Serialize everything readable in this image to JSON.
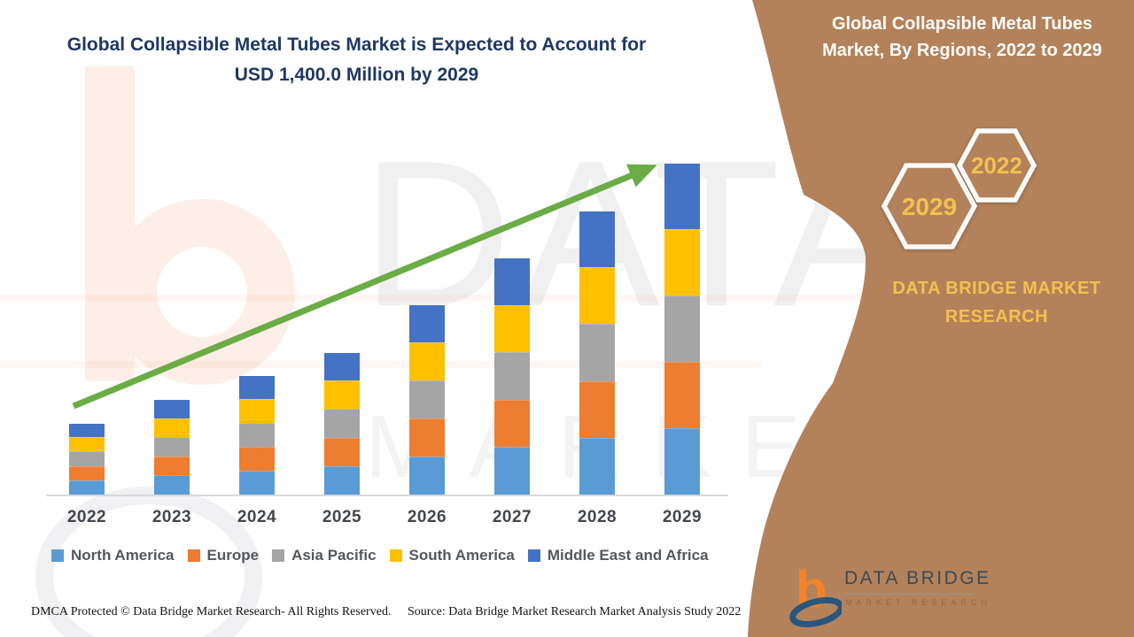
{
  "page": {
    "title_line1": "Global Collapsible Metal Tubes Market is Expected to Account for",
    "title_line2": "USD 1,400.0 Million by 2029",
    "title_color": "#1f3864"
  },
  "sidebar": {
    "heading_line1": "Global Collapsible Metal Tubes",
    "heading_line2": "Market, By Regions, 2022 to 2029",
    "hexagons": [
      {
        "label": "2029"
      },
      {
        "label": "2022"
      }
    ],
    "brand_line1": "DATA BRIDGE MARKET",
    "brand_line2": "RESEARCH",
    "background_color": "#b3825a",
    "gold_color": "#f2c24e"
  },
  "watermark": {
    "big_text": "DATA BRI",
    "sub_text": "MARKET RESEARCH"
  },
  "logo": {
    "name_text": "DATA BRIDGE",
    "sub_text": "MARKET RESEARCH"
  },
  "footer": {
    "left": "DMCA Protected © Data Bridge Market Research- All Rights Reserved.",
    "right": "Source: Data Bridge Market Research Market Analysis Study 2022"
  },
  "chart_data": {
    "type": "bar",
    "stacked": true,
    "unit": "USD Million",
    "categories": [
      "2022",
      "2023",
      "2024",
      "2025",
      "2026",
      "2027",
      "2028",
      "2029"
    ],
    "series": [
      {
        "name": "North America",
        "color": "#5b9bd5",
        "values": [
          60,
          80,
          100,
          120,
          160,
          200,
          240,
          280
        ]
      },
      {
        "name": "Europe",
        "color": "#ed7d31",
        "values": [
          60,
          80,
          100,
          120,
          160,
          200,
          240,
          280
        ]
      },
      {
        "name": "Asia Pacific",
        "color": "#a5a5a5",
        "values": [
          60,
          80,
          100,
          120,
          160,
          200,
          240,
          280
        ]
      },
      {
        "name": "South America",
        "color": "#ffc000",
        "values": [
          60,
          80,
          100,
          120,
          160,
          200,
          240,
          280
        ]
      },
      {
        "name": "Middle East and Africa",
        "color": "#4472c4",
        "values": [
          60,
          80,
          100,
          120,
          160,
          200,
          240,
          280
        ]
      }
    ],
    "totals": [
      300,
      400,
      500,
      600,
      800,
      1000,
      1200,
      1400
    ],
    "ylim": [
      0,
      1400
    ],
    "grid": false,
    "legend_position": "bottom",
    "trend_arrow_color": "#6bac46"
  }
}
